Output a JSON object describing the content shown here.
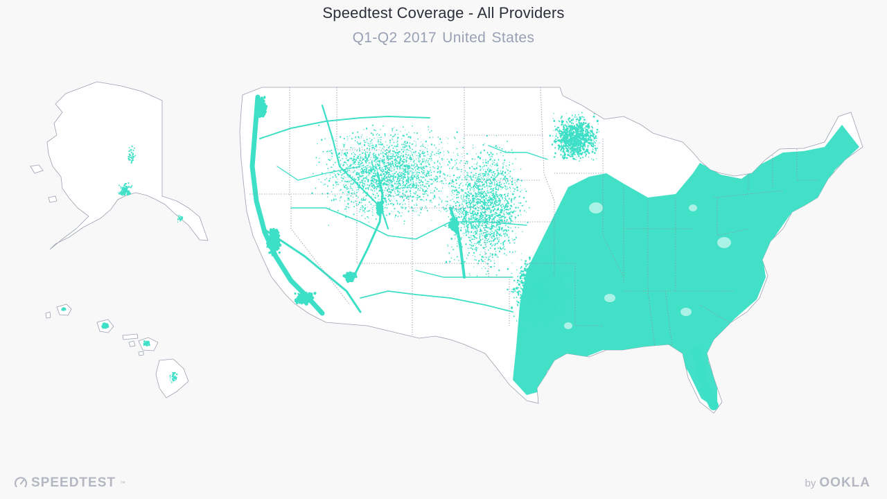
{
  "map": {
    "title": "Speedtest Coverage - All Providers",
    "period": "Q1-Q2 2017",
    "region": "United States",
    "coverage_color": "#3ddfc6",
    "land_color": "#ffffff",
    "border_color": "#9aa0b0"
  },
  "branding": {
    "left_logo": "SPEEDTEST",
    "left_logo_tm": "™",
    "left_icon": "speedometer-icon",
    "right_prefix": "by",
    "right_logo": "OOKLA"
  }
}
